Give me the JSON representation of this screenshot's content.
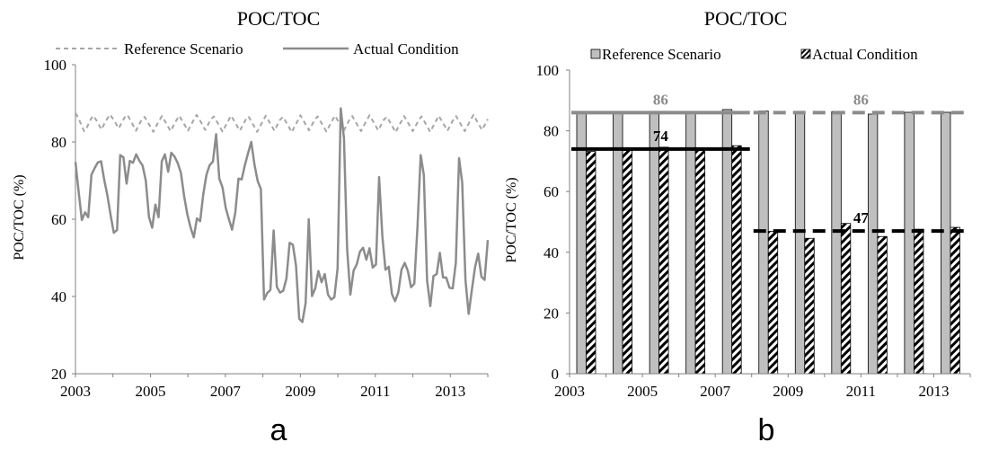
{
  "chart_data": [
    {
      "panel_label": "a",
      "type": "line",
      "title": "POC/TOC",
      "ylabel": "POC/TOC (%)",
      "xlabel": "",
      "xlim": [
        2003,
        2014
      ],
      "ylim": [
        20,
        100
      ],
      "x_tick_labels": [
        "2003",
        "2005",
        "2007",
        "2009",
        "2011",
        "2013"
      ],
      "y_tick_labels": [
        "20",
        "40",
        "60",
        "80",
        "100"
      ],
      "legend_position": "top",
      "grid": false,
      "colors": {
        "reference": "#a6a6a6",
        "actual": "#8c8c8c",
        "axis": "#808080"
      },
      "series": [
        {
          "name": "Reference Scenario",
          "style": "dashed",
          "values": [
            87.5,
            86.2,
            84.5,
            82.8,
            83.8,
            85.4,
            86.8,
            85.9,
            84.6,
            83.2,
            84.7,
            86.0,
            87.1,
            86.0,
            84.8,
            83.5,
            84.9,
            86.3,
            87.0,
            85.7,
            84.3,
            82.9,
            84.4,
            85.8,
            86.5,
            85.2,
            83.9,
            82.6,
            84.1,
            85.5,
            86.7,
            85.4,
            84.1,
            82.8,
            84.2,
            85.6,
            86.8,
            85.5,
            84.2,
            82.9,
            84.3,
            85.7,
            87.0,
            85.8,
            84.5,
            83.1,
            84.5,
            85.9,
            86.6,
            85.3,
            84.0,
            82.7,
            84.1,
            85.5,
            86.8,
            85.5,
            84.2,
            82.9,
            84.3,
            85.7,
            86.6,
            85.3,
            84.0,
            82.6,
            84.0,
            85.4,
            86.8,
            85.5,
            84.2,
            82.9,
            84.4,
            85.8,
            86.5,
            85.2,
            83.9,
            82.5,
            84.0,
            85.4,
            86.9,
            85.6,
            84.3,
            83.0,
            84.4,
            85.8,
            86.6,
            85.3,
            84.0,
            82.7,
            84.1,
            85.5,
            86.8,
            85.5,
            84.1,
            82.8,
            84.3,
            85.7,
            86.7,
            85.4,
            84.1,
            82.8,
            84.2,
            85.6,
            86.9,
            85.6,
            84.3,
            83.0,
            84.4,
            85.8,
            86.5,
            85.2,
            83.9,
            82.5,
            83.9,
            85.3,
            86.7,
            85.4,
            84.1,
            82.8,
            84.2,
            85.6,
            86.6,
            85.3,
            84.0,
            82.6,
            84.0,
            85.4,
            86.8,
            85.5,
            84.2,
            82.9,
            84.3,
            85.7,
            86.7,
            85.4,
            84.1,
            82.8,
            84.2,
            85.6,
            87.0,
            85.7,
            84.4,
            83.1,
            84.5,
            85.9
          ]
        },
        {
          "name": "Actual Condition",
          "style": "solid",
          "values": [
            74.8,
            67.0,
            59.8,
            61.8,
            60.5,
            71.5,
            73.2,
            74.7,
            75.0,
            70.2,
            66.1,
            61.1,
            56.5,
            57.2,
            76.6,
            76.0,
            69.2,
            75.1,
            74.6,
            76.8,
            75.1,
            73.9,
            70.0,
            60.6,
            57.8,
            63.8,
            60.5,
            75.0,
            76.8,
            72.3,
            77.2,
            76.2,
            74.5,
            72.0,
            65.9,
            61.3,
            57.9,
            55.3,
            60.2,
            59.5,
            66.5,
            71.6,
            74.0,
            74.9,
            82.0,
            70.5,
            68.2,
            63.0,
            60.0,
            57.3,
            61.7,
            70.5,
            70.3,
            74.0,
            77.1,
            80.0,
            74.1,
            69.9,
            67.8,
            39.2,
            40.9,
            41.7,
            57.1,
            42.5,
            41.0,
            41.5,
            44.6,
            53.9,
            53.4,
            48.0,
            34.2,
            33.4,
            38.3,
            60.0,
            40.1,
            42.1,
            46.6,
            43.7,
            45.8,
            40.5,
            39.2,
            39.8,
            47.3,
            88.7,
            80.9,
            52.3,
            40.5,
            46.7,
            48.3,
            51.6,
            52.6,
            49.5,
            52.5,
            47.5,
            48.3,
            70.9,
            55.7,
            46.9,
            47.7,
            40.6,
            38.8,
            41.1,
            46.9,
            48.7,
            46.6,
            42.4,
            43.3,
            58.0,
            76.6,
            71.4,
            44.2,
            37.5,
            45.3,
            45.8,
            51.3,
            44.9,
            44.9,
            42.3,
            42.1,
            48.7,
            75.8,
            69.5,
            44.4,
            35.5,
            41.6,
            47.6,
            51.1,
            45.1,
            44.3,
            54.6
          ]
        }
      ]
    },
    {
      "panel_label": "b",
      "type": "bar",
      "title": "POC/TOC",
      "ylabel": "POC/TOC (%)",
      "xlabel": "",
      "ylim": [
        0,
        100
      ],
      "categories": [
        "2003",
        "2004",
        "2005",
        "2006",
        "2007",
        "2008",
        "2009",
        "2010",
        "2011",
        "2012",
        "2013"
      ],
      "x_tick_labels": [
        "2003",
        "2005",
        "2007",
        "2009",
        "2011",
        "2013"
      ],
      "y_tick_labels": [
        "0",
        "20",
        "40",
        "60",
        "80",
        "100"
      ],
      "legend_position": "top",
      "grid": false,
      "colors": {
        "reference": "#bfbfbf",
        "actual_hatch": "#000000",
        "mean_line_reference": "#8c8c8c",
        "mean_line_actual": "#000000"
      },
      "series": [
        {
          "name": "Reference Scenario",
          "fill": "gray",
          "values": [
            86.2,
            86.1,
            86.3,
            86.2,
            87.0,
            86.5,
            85.8,
            86.3,
            85.5,
            86.1,
            86.1
          ]
        },
        {
          "name": "Actual Condition",
          "fill": "hatched",
          "values": [
            73.2,
            73.5,
            74.6,
            73.5,
            75.1,
            46.9,
            44.6,
            49.5,
            45.2,
            47.6,
            48.2
          ]
        }
      ],
      "annotations": [
        {
          "text": "86",
          "period": "2003-2007",
          "value": 86,
          "style": "solid",
          "series": "Reference Scenario"
        },
        {
          "text": "74",
          "period": "2003-2007",
          "value": 74,
          "style": "solid",
          "series": "Actual Condition"
        },
        {
          "text": "86",
          "period": "2008-2013",
          "value": 86,
          "style": "dashed",
          "series": "Reference Scenario"
        },
        {
          "text": "47",
          "period": "2008-2013",
          "value": 47,
          "style": "dashed",
          "series": "Actual Condition"
        }
      ]
    }
  ]
}
